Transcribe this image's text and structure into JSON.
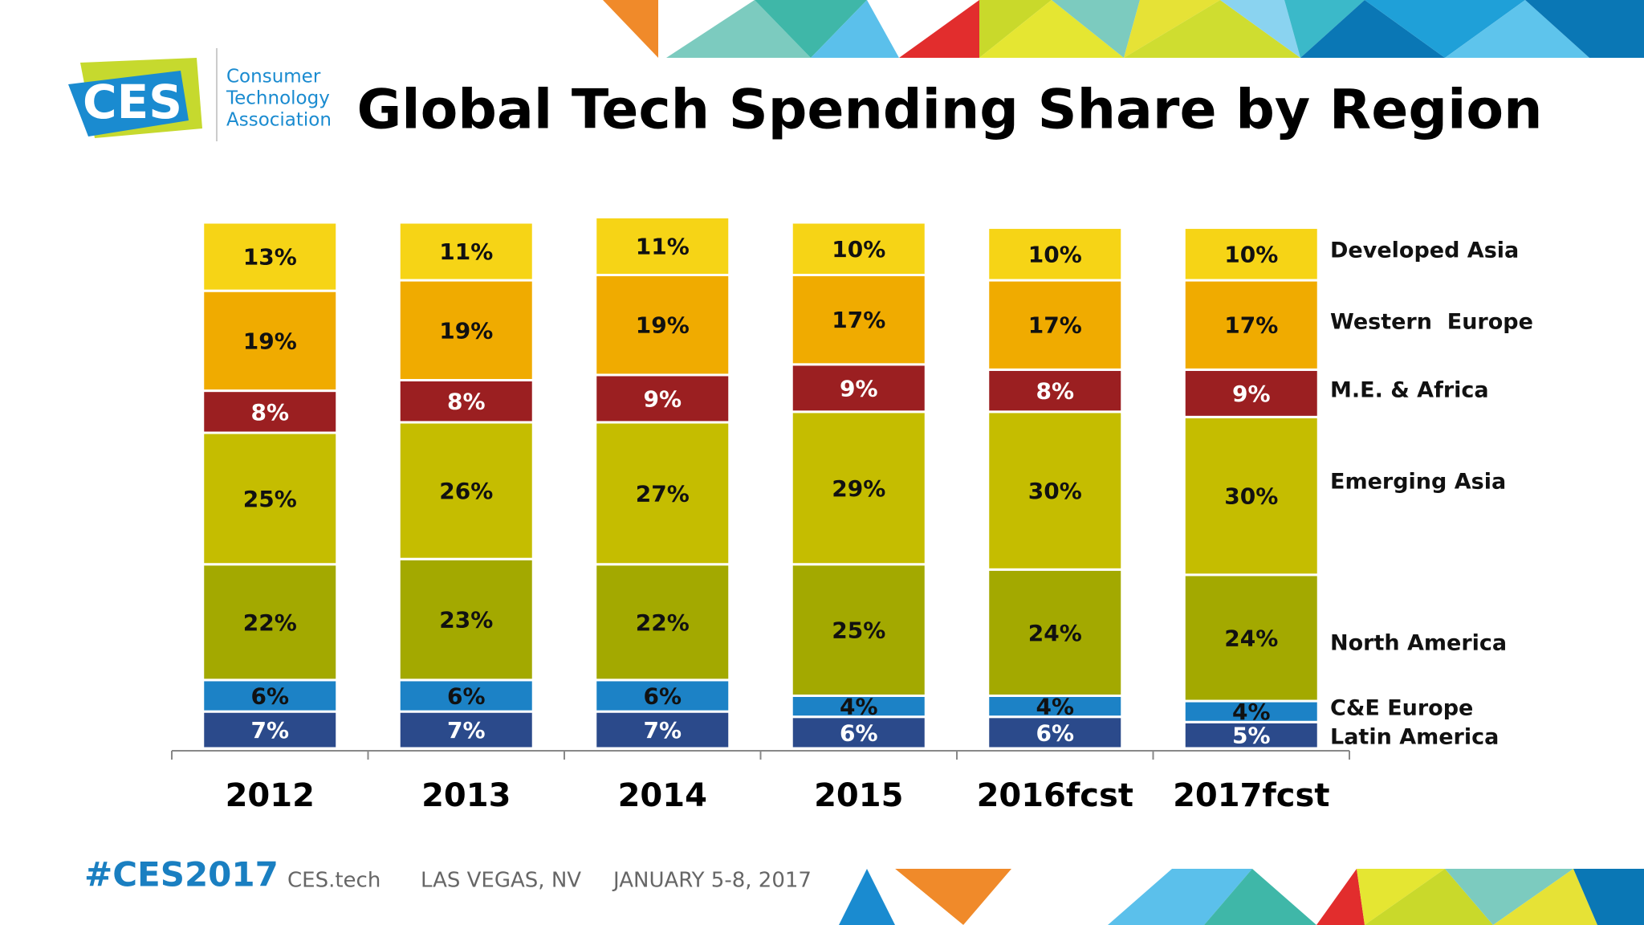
{
  "branding": {
    "logo": "CES",
    "org": [
      "Consumer",
      "Technology",
      "Association"
    ]
  },
  "chart_data": {
    "type": "bar",
    "stacked": true,
    "title": "Global Tech Spending Share by Region",
    "categories": [
      "2012",
      "2013",
      "2014",
      "2015",
      "2016fcst",
      "2017fcst"
    ],
    "series": [
      {
        "name": "Latin America",
        "color": "#2b4a8b",
        "values": [
          7,
          7,
          7,
          6,
          6,
          5
        ],
        "value_labels": [
          "7%",
          "7%",
          "7%",
          "6%",
          "6%",
          "5%"
        ]
      },
      {
        "name": "C&E Europe",
        "color": "#1c82c6",
        "values": [
          6,
          6,
          6,
          4,
          4,
          4
        ],
        "value_labels": [
          "6%",
          "6%",
          "6%",
          "4%",
          "4%",
          "4%"
        ]
      },
      {
        "name": "North America",
        "color": "#a3a900",
        "values": [
          22,
          23,
          22,
          25,
          24,
          24
        ],
        "value_labels": [
          "22%",
          "23%",
          "22%",
          "25%",
          "24%",
          "24%"
        ]
      },
      {
        "name": "Emerging Asia",
        "color": "#c5bd00",
        "values": [
          25,
          26,
          27,
          29,
          30,
          30
        ],
        "value_labels": [
          "25%",
          "26%",
          "27%",
          "29%",
          "30%",
          "30%"
        ]
      },
      {
        "name": "M.E. & Africa",
        "color": "#9b1f21",
        "values": [
          8,
          8,
          9,
          9,
          8,
          9
        ],
        "value_labels": [
          "8%",
          "8%",
          "9%",
          "9%",
          "8%",
          "9%"
        ]
      },
      {
        "name": "Western  Europe",
        "color": "#f0ab00",
        "values": [
          19,
          19,
          19,
          17,
          17,
          17
        ],
        "value_labels": [
          "19%",
          "19%",
          "19%",
          "17%",
          "17%",
          "17%"
        ]
      },
      {
        "name": "Developed Asia",
        "color": "#f6d416",
        "values": [
          13,
          11,
          11,
          10,
          10,
          10
        ],
        "value_labels": [
          "13%",
          "11%",
          "11%",
          "10%",
          "10%",
          "10%"
        ]
      }
    ]
  },
  "footer": [
    "#CES2017",
    "CES.tech",
    "LAS VEGAS, NV",
    "JANUARY 5-8, 2017"
  ]
}
